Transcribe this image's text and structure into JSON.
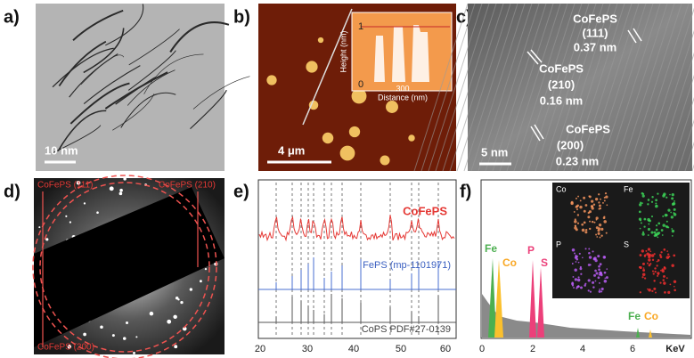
{
  "panels": [
    {
      "label": "a)",
      "scale_bar": "10 nm"
    },
    {
      "label": "b)",
      "scale_bar": "4 μm",
      "inset": {
        "y_label": "Height (nm)",
        "y_ticks": [
          "1",
          "0"
        ],
        "x_tick": "300",
        "x_label": "Distance (nm)"
      }
    },
    {
      "label": "c)",
      "scale_bar": "5 nm",
      "annotations": [
        [
          "CoFePS",
          "(111)",
          "0.37 nm"
        ],
        [
          "CoFePS",
          "(210)",
          "0.16 nm"
        ],
        [
          "CoFePS",
          "(200)",
          "0.23 nm"
        ]
      ]
    },
    {
      "label": "d)",
      "annotations": [
        "CoFePS (111)",
        "CoFePS (210)",
        "CoFePS (200)"
      ]
    },
    {
      "label": "e)",
      "traces": [
        "CoFePS",
        "FePS (mp-1101971)",
        "CoPS PDF#27-0139"
      ],
      "x_ticks": [
        "20",
        "30",
        "40",
        "50",
        "60"
      ]
    },
    {
      "label": "f)",
      "peaks": [
        "Fe",
        "Co",
        "P",
        "S",
        "Fe",
        "Co"
      ],
      "x_ticks": [
        "0",
        "2",
        "4",
        "6"
      ],
      "x_unit": "KeV",
      "maps": [
        "Co",
        "Fe",
        "P",
        "S"
      ]
    }
  ]
}
